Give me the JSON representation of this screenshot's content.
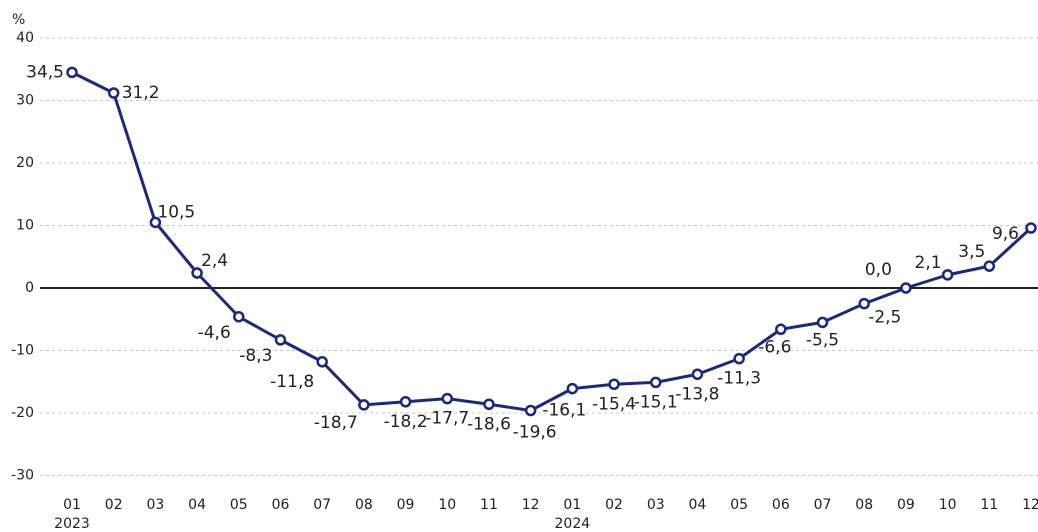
{
  "chart_data": {
    "type": "line",
    "y_unit": "%",
    "categories": [
      "01",
      "02",
      "03",
      "04",
      "05",
      "06",
      "07",
      "08",
      "09",
      "10",
      "11",
      "12",
      "01",
      "02",
      "03",
      "04",
      "05",
      "06",
      "07",
      "08",
      "09",
      "10",
      "11",
      "12"
    ],
    "category_groups": [
      "2023",
      "2024"
    ],
    "series": [
      {
        "color": "#1b2a78",
        "values": [
          34.5,
          31.2,
          10.5,
          2.4,
          -4.6,
          -8.3,
          -11.8,
          -18.7,
          -18.2,
          -17.7,
          -18.6,
          -19.6,
          -16.1,
          -15.4,
          -15.1,
          -13.8,
          -11.3,
          -6.6,
          -5.5,
          -2.5,
          0.0,
          2.1,
          3.5,
          9.6
        ],
        "value_labels": [
          "34,5",
          "31,2",
          "10,5",
          "2,4",
          "-4,6",
          "-8,3",
          "-11,8",
          "-18,7",
          "-18,2",
          "-17,7",
          "-18,6",
          "-19,6",
          "-16,1",
          "-15,4",
          "-15,1",
          "-13,8",
          "-11,3",
          "-6,6",
          "-5,5",
          "-2,5",
          "0,0",
          "2,1",
          "3,5",
          "9,6"
        ]
      }
    ],
    "ylim": [
      -30,
      40
    ],
    "yticks": [
      -30,
      -20,
      -10,
      0,
      10,
      20,
      30,
      40
    ],
    "grid": true
  }
}
